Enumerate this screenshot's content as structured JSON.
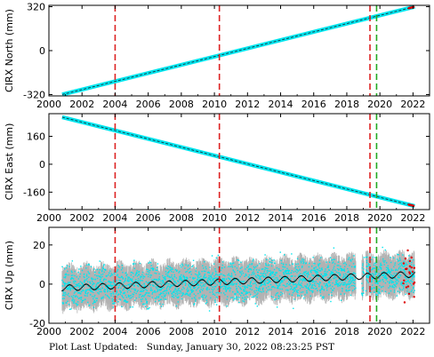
{
  "chart_data": [
    {
      "type": "scatter",
      "ylabel": "CIRX North (mm)",
      "xlim": [
        2000,
        2023
      ],
      "ylim": [
        -330,
        330
      ],
      "xticks": [
        2000,
        2002,
        2004,
        2006,
        2008,
        2010,
        2012,
        2014,
        2016,
        2018,
        2020,
        2022
      ],
      "yticks": [
        -320,
        0,
        320
      ],
      "trend": {
        "x": [
          2000.8,
          2022.1
        ],
        "y": [
          -320,
          320
        ]
      },
      "event_lines": [
        {
          "x": 2004.0,
          "color": "#dd2222",
          "style": "dashed"
        },
        {
          "x": 2010.3,
          "color": "#dd2222",
          "style": "dashed"
        },
        {
          "x": 2019.4,
          "color": "#dd2222",
          "style": "dashed"
        },
        {
          "x": 2019.8,
          "color": "#22aa22",
          "style": "dashed"
        }
      ]
    },
    {
      "type": "scatter",
      "ylabel": "CIRX East (mm)",
      "xlim": [
        2000,
        2023
      ],
      "ylim": [
        -260,
        290
      ],
      "xticks": [
        2000,
        2002,
        2004,
        2006,
        2008,
        2010,
        2012,
        2014,
        2016,
        2018,
        2020,
        2022
      ],
      "yticks": [
        -160,
        0,
        160
      ],
      "trend": {
        "x": [
          2000.8,
          2022.1
        ],
        "y": [
          270,
          -240
        ]
      },
      "event_lines": [
        {
          "x": 2004.0,
          "color": "#dd2222",
          "style": "dashed"
        },
        {
          "x": 2010.3,
          "color": "#dd2222",
          "style": "dashed"
        },
        {
          "x": 2019.4,
          "color": "#dd2222",
          "style": "dashed"
        },
        {
          "x": 2019.8,
          "color": "#22aa22",
          "style": "dashed"
        }
      ]
    },
    {
      "type": "scatter",
      "ylabel": "CIRX Up (mm)",
      "xlim": [
        2000,
        2023
      ],
      "ylim": [
        -20,
        29
      ],
      "xticks": [
        2000,
        2002,
        2004,
        2006,
        2008,
        2010,
        2012,
        2014,
        2016,
        2018,
        2020,
        2022
      ],
      "yticks": [
        -20,
        0,
        20
      ],
      "trend": {
        "x": [
          2000.8,
          2022.1
        ],
        "y": [
          -2,
          5
        ]
      },
      "seasonal_amplitude": 1.5,
      "scatter_spread": 5,
      "error_spread": 12,
      "event_lines": [
        {
          "x": 2004.0,
          "color": "#dd2222",
          "style": "dashed"
        },
        {
          "x": 2010.3,
          "color": "#dd2222",
          "style": "dashed"
        },
        {
          "x": 2019.4,
          "color": "#dd2222",
          "style": "dashed"
        },
        {
          "x": 2019.8,
          "color": "#22aa22",
          "style": "dashed"
        }
      ]
    }
  ],
  "colors": {
    "points": "#00e5ee",
    "errors": "#b3b3b3",
    "model": "#000000",
    "recent": "#dd0000"
  },
  "footer": {
    "label": "Plot Last Updated:",
    "value": "Sunday, January 30, 2022 08:23:25 PST"
  }
}
